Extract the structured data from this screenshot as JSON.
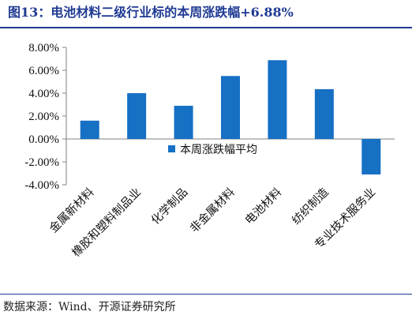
{
  "title": "图13：电池材料二级行业标的本周涨跌幅+6.88%",
  "source": "数据来源：Wind、开源证券研究所",
  "colors": {
    "bar": "#1670c4",
    "title": "#1f3a93"
  },
  "chart_data": {
    "type": "bar",
    "categories": [
      "金属新材料",
      "橡胶和塑料制品业",
      "化学制品",
      "非金属材料",
      "电池材料",
      "纺织制造",
      "专业技术服务业"
    ],
    "series": [
      {
        "name": "本周涨跌幅平均",
        "values": [
          1.6,
          4.0,
          2.9,
          5.5,
          6.88,
          4.35,
          -3.1
        ]
      }
    ],
    "yticks": [
      "8.00%",
      "6.00%",
      "4.00%",
      "2.00%",
      "0.00%",
      "-2.00%",
      "-4.00%"
    ],
    "ylim": [
      -4,
      8
    ],
    "grid": false,
    "legend_position": "center"
  }
}
